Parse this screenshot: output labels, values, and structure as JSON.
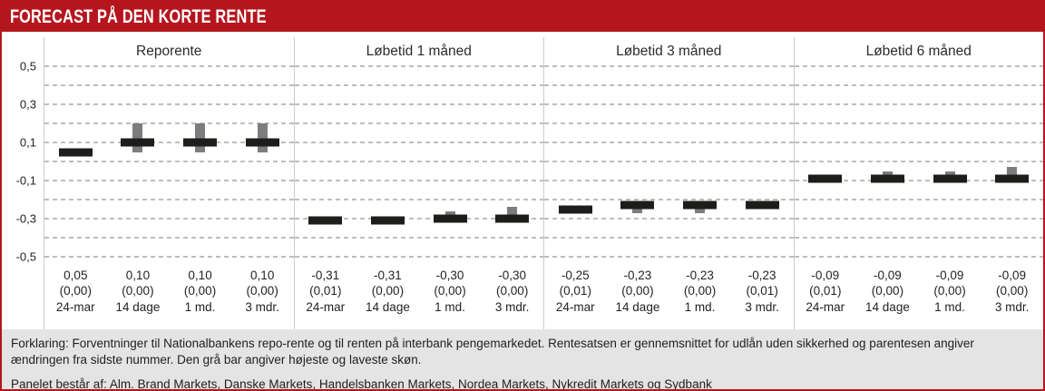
{
  "header": {
    "title": "FORECAST PÅ DEN KORTE RENTE"
  },
  "colors": {
    "accent_red": "#B5161E",
    "estimate_bar_black": "#1D1D1B",
    "range_bar_gray": "#7D7D7D",
    "footer_bg": "#E4E4E4",
    "gridline_gray": "#BDBDBD"
  },
  "chart_data": {
    "type": "bar",
    "title": "FORECAST PÅ DEN KORTE RENTE",
    "legend_note": "black bar = average forecast, gray bar = highest/lowest estimate range",
    "y_axis": {
      "ylim": [
        -0.5,
        0.5
      ],
      "grid_step": 0.1,
      "grid": "dashed",
      "tick_labels": [
        "0,5",
        "0,3",
        "0,1",
        "-0,1",
        "-0,3",
        "-0,5"
      ],
      "tick_values": [
        0.5,
        0.3,
        0.1,
        -0.1,
        -0.3,
        -0.5
      ]
    },
    "panels": [
      {
        "title": "Reporente",
        "points": [
          {
            "value": 0.05,
            "value_label": "0,05",
            "change_label": "(0,00)",
            "period": "24-mar",
            "range": null
          },
          {
            "value": 0.1,
            "value_label": "0,10",
            "change_label": "(0,00)",
            "period": "14 dage",
            "range": [
              0.05,
              0.2
            ]
          },
          {
            "value": 0.1,
            "value_label": "0,10",
            "change_label": "(0,00)",
            "period": "1 md.",
            "range": [
              0.05,
              0.2
            ]
          },
          {
            "value": 0.1,
            "value_label": "0,10",
            "change_label": "(0,00)",
            "period": "3 mdr.",
            "range": [
              0.05,
              0.2
            ]
          }
        ]
      },
      {
        "title": "Løbetid 1 måned",
        "points": [
          {
            "value": -0.31,
            "value_label": "-0,31",
            "change_label": "(0,01)",
            "period": "24-mar",
            "range": null
          },
          {
            "value": -0.31,
            "value_label": "-0,31",
            "change_label": "(0,00)",
            "period": "14 dage",
            "range": null
          },
          {
            "value": -0.3,
            "value_label": "-0,30",
            "change_label": "(0,00)",
            "period": "1 md.",
            "range": [
              -0.32,
              -0.26
            ]
          },
          {
            "value": -0.3,
            "value_label": "-0,30",
            "change_label": "(0,00)",
            "period": "3 mdr.",
            "range": [
              -0.32,
              -0.24
            ]
          }
        ]
      },
      {
        "title": "Løbetid 3 måned",
        "points": [
          {
            "value": -0.25,
            "value_label": "-0,25",
            "change_label": "(0,01)",
            "period": "24-mar",
            "range": null
          },
          {
            "value": -0.23,
            "value_label": "-0,23",
            "change_label": "(0,00)",
            "period": "14 dage",
            "range": [
              -0.27,
              -0.21
            ]
          },
          {
            "value": -0.23,
            "value_label": "-0,23",
            "change_label": "(0,00)",
            "period": "1 md.",
            "range": [
              -0.27,
              -0.21
            ]
          },
          {
            "value": -0.23,
            "value_label": "-0,23",
            "change_label": "(0,01)",
            "period": "3 mdr.",
            "range": [
              -0.25,
              -0.21
            ]
          }
        ]
      },
      {
        "title": "Løbetid 6 måned",
        "points": [
          {
            "value": -0.09,
            "value_label": "-0,09",
            "change_label": "(0,01)",
            "period": "24-mar",
            "range": null
          },
          {
            "value": -0.09,
            "value_label": "-0,09",
            "change_label": "(0,00)",
            "period": "14 dage",
            "range": [
              -0.1,
              -0.05
            ]
          },
          {
            "value": -0.09,
            "value_label": "-0,09",
            "change_label": "(0,00)",
            "period": "1 md.",
            "range": [
              -0.1,
              -0.05
            ]
          },
          {
            "value": -0.09,
            "value_label": "-0,09",
            "change_label": "(0,00)",
            "period": "3 mdr.",
            "range": [
              -0.1,
              -0.03
            ]
          }
        ]
      }
    ]
  },
  "footer": {
    "explanation": "Forklaring: Forventninger til Nationalbankens repo-rente og til renten på interbank pengemarkedet. Rentesatsen er gennemsnittet for udlån uden sikkerhed og parentesen angiver ændringen fra sidste nummer. Den grå bar angiver højeste og laveste skøn.",
    "panel_note": "Panelet består af: Alm. Brand Markets, Danske Markets, Handelsbanken Markets, Nordea Markets, Nykredit Markets og Sydbank"
  }
}
